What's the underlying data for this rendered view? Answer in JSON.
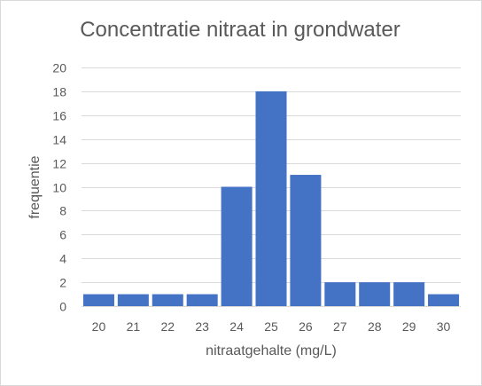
{
  "chart_data": {
    "type": "bar",
    "title": "Concentratie nitraat in grondwater",
    "xlabel": "nitraatgehalte (mg/L)",
    "ylabel": "frequentie",
    "categories": [
      "20",
      "21",
      "22",
      "23",
      "24",
      "25",
      "26",
      "27",
      "28",
      "29",
      "30"
    ],
    "values": [
      1,
      1,
      1,
      1,
      10,
      18,
      11,
      2,
      2,
      2,
      1
    ],
    "ylim": [
      0,
      20
    ],
    "yticks": [
      0,
      2,
      4,
      6,
      8,
      10,
      12,
      14,
      16,
      18,
      20
    ],
    "grid": true,
    "legend": "none",
    "bar_color": "#4472C4",
    "grid_color": "#d9d9d9",
    "text_color": "#595959"
  }
}
